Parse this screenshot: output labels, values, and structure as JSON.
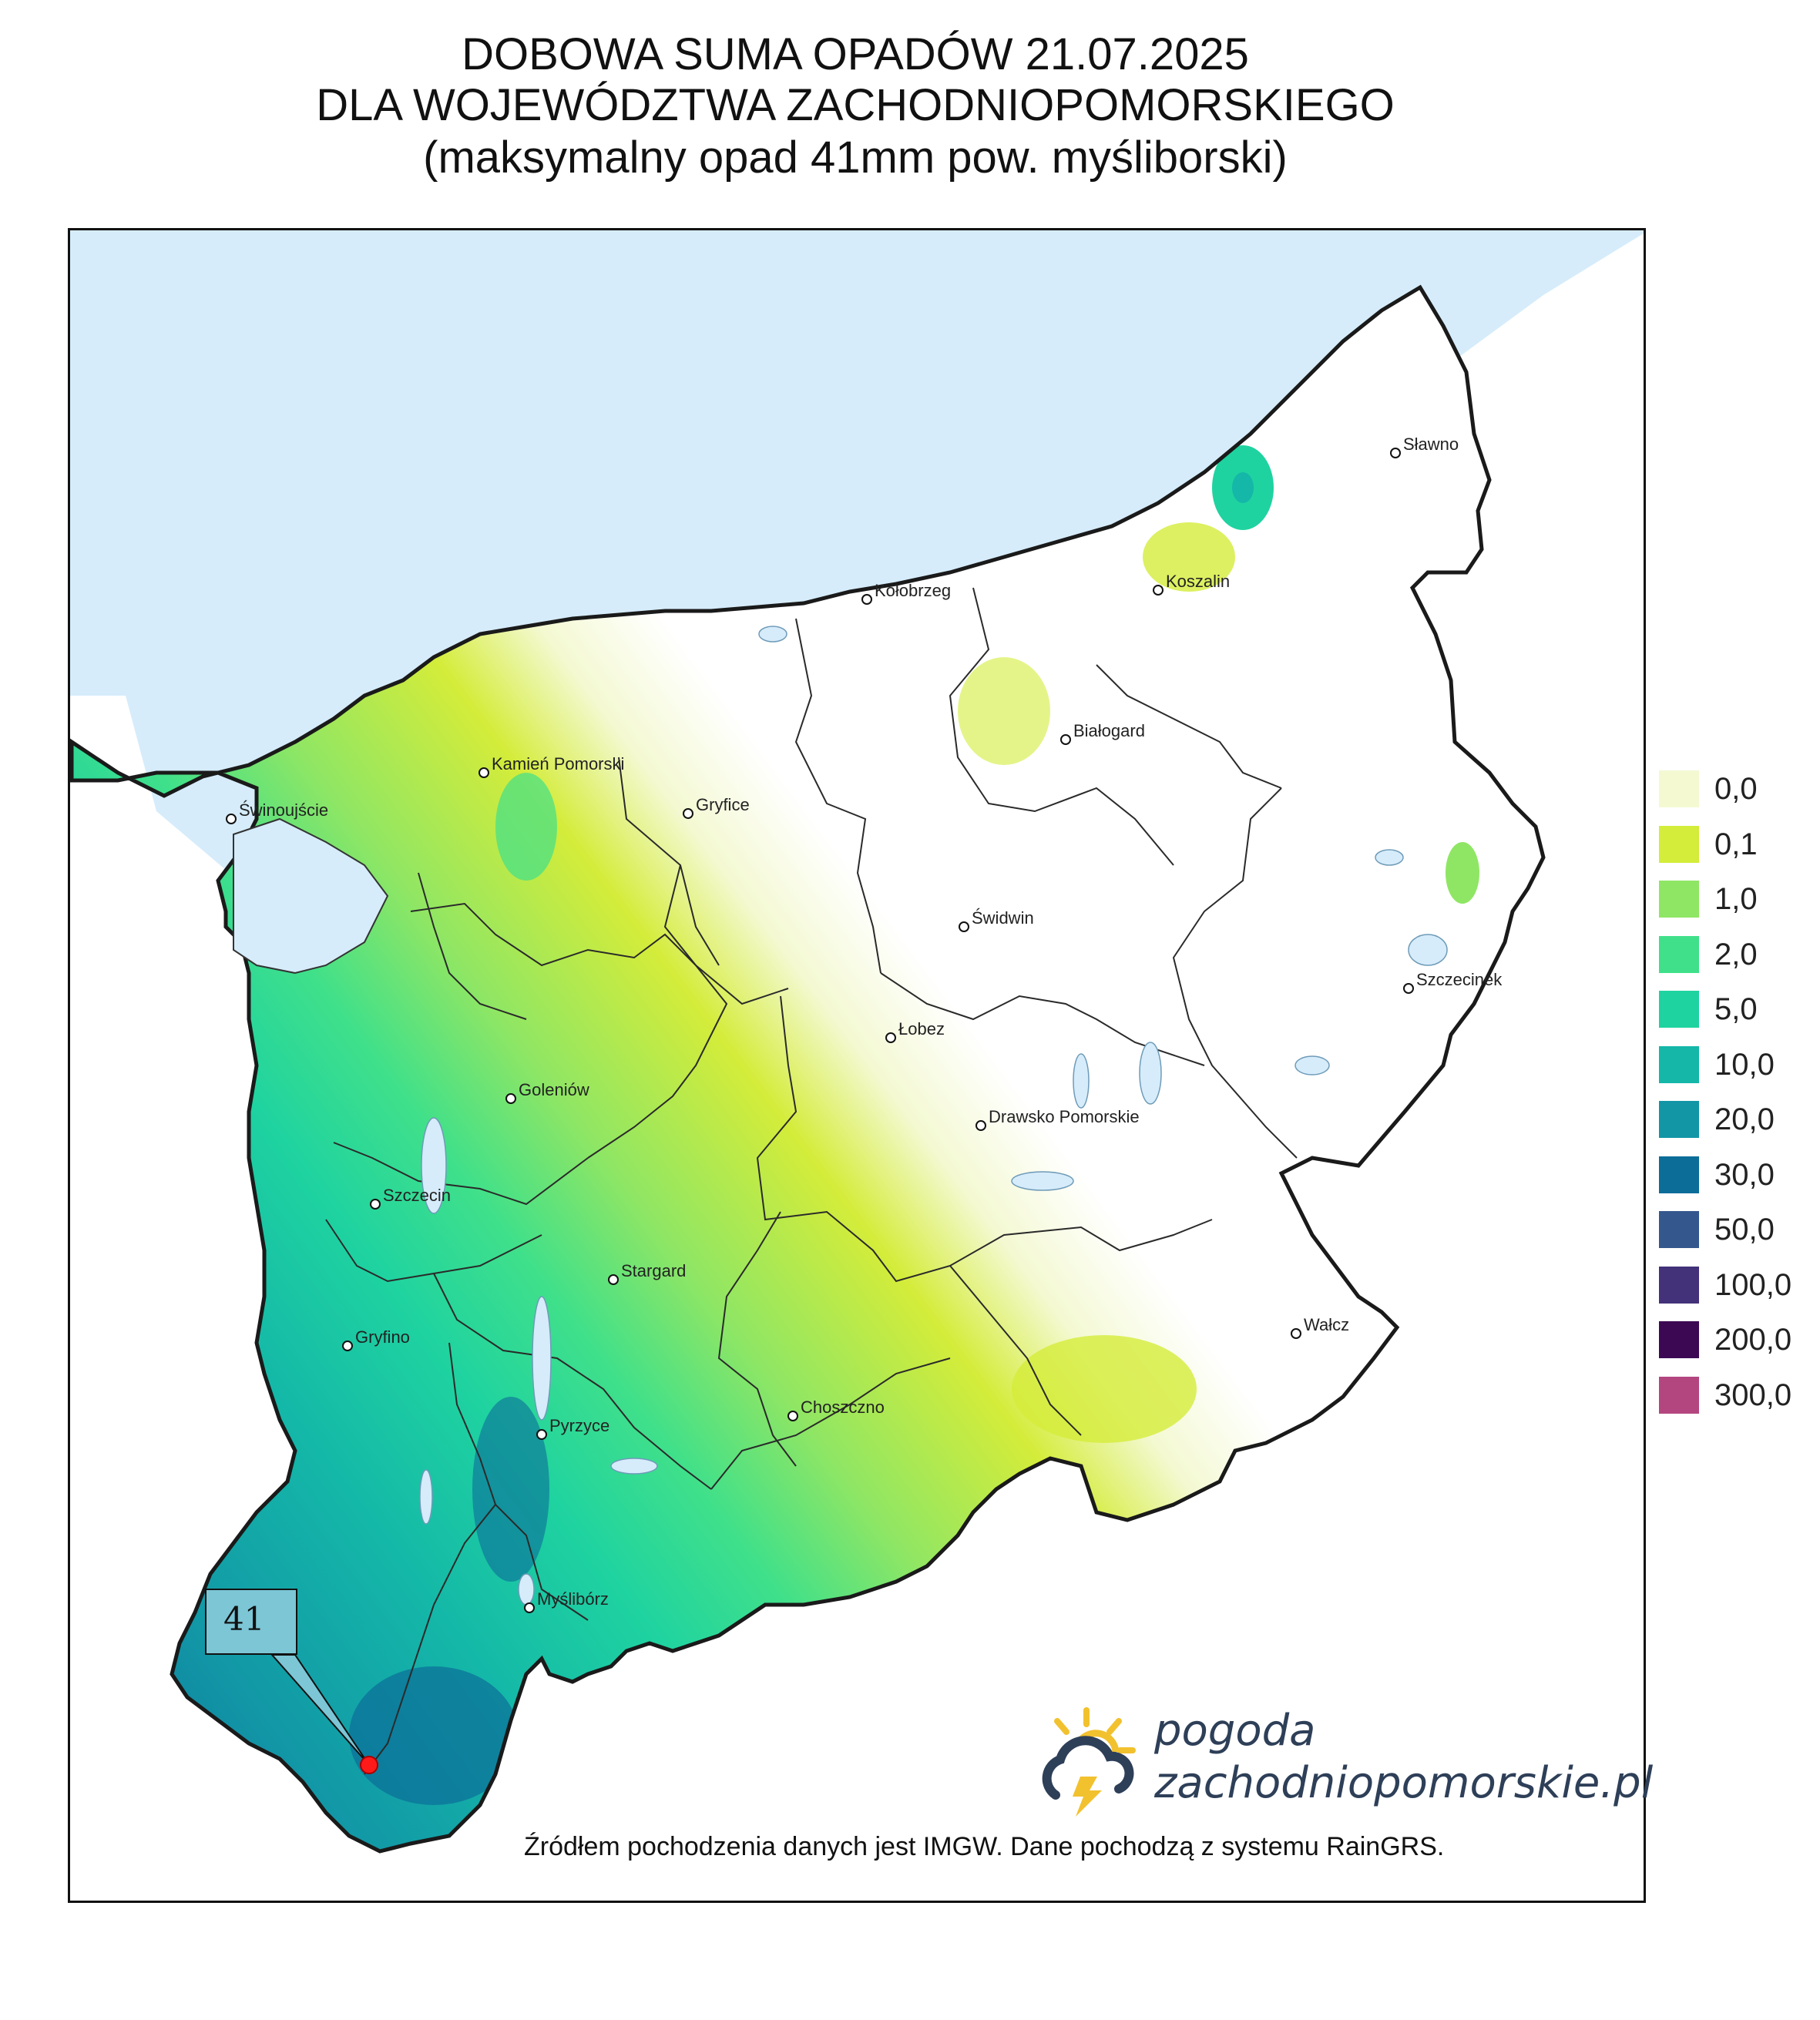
{
  "title": {
    "line1": "DOBOWA SUMA OPADÓW 21.07.2025",
    "line2": "DLA WOJEWÓDZTWA ZACHODNIOPOMORSKIEGO",
    "line3": "(maksymalny opad 41mm pow. myśliborski)"
  },
  "legend": [
    {
      "label": "0,0",
      "color": "#f4f9d2"
    },
    {
      "label": "0,1",
      "color": "#d4ec3a"
    },
    {
      "label": "1,0",
      "color": "#8fe664"
    },
    {
      "label": "2,0",
      "color": "#40e08a"
    },
    {
      "label": "5,0",
      "color": "#1fd3a0"
    },
    {
      "label": "10,0",
      "color": "#14b7a8"
    },
    {
      "label": "20,0",
      "color": "#1296a6"
    },
    {
      "label": "30,0",
      "color": "#0c6d99"
    },
    {
      "label": "50,0",
      "color": "#34578e"
    },
    {
      "label": "100,0",
      "color": "#43317a"
    },
    {
      "label": "200,0",
      "color": "#3c0854"
    },
    {
      "label": "300,0",
      "color": "#b3467f"
    }
  ],
  "cities": [
    {
      "name": "Sławno"
    },
    {
      "name": "Koszalin"
    },
    {
      "name": "Kołobrzeg"
    },
    {
      "name": "Białogard"
    },
    {
      "name": "Kamień Pomorski"
    },
    {
      "name": "Gryfice"
    },
    {
      "name": "Świnoujście"
    },
    {
      "name": "Świdwin"
    },
    {
      "name": "Szczecinek"
    },
    {
      "name": "Łobez"
    },
    {
      "name": "Goleniów"
    },
    {
      "name": "Drawsko Pomorskie"
    },
    {
      "name": "Szczecin"
    },
    {
      "name": "Stargard"
    },
    {
      "name": "Wałcz"
    },
    {
      "name": "Gryfino"
    },
    {
      "name": "Choszczno"
    },
    {
      "name": "Pyrzyce"
    },
    {
      "name": "Myślibórz"
    }
  ],
  "max_callout": {
    "value": "41"
  },
  "logo": {
    "line1": "pogoda",
    "line2": "zachodniopomorskie.pl"
  },
  "source_note": "Źródłem pochodzenia danych jest IMGW. Dane pochodzą z systemu RainGRS."
}
